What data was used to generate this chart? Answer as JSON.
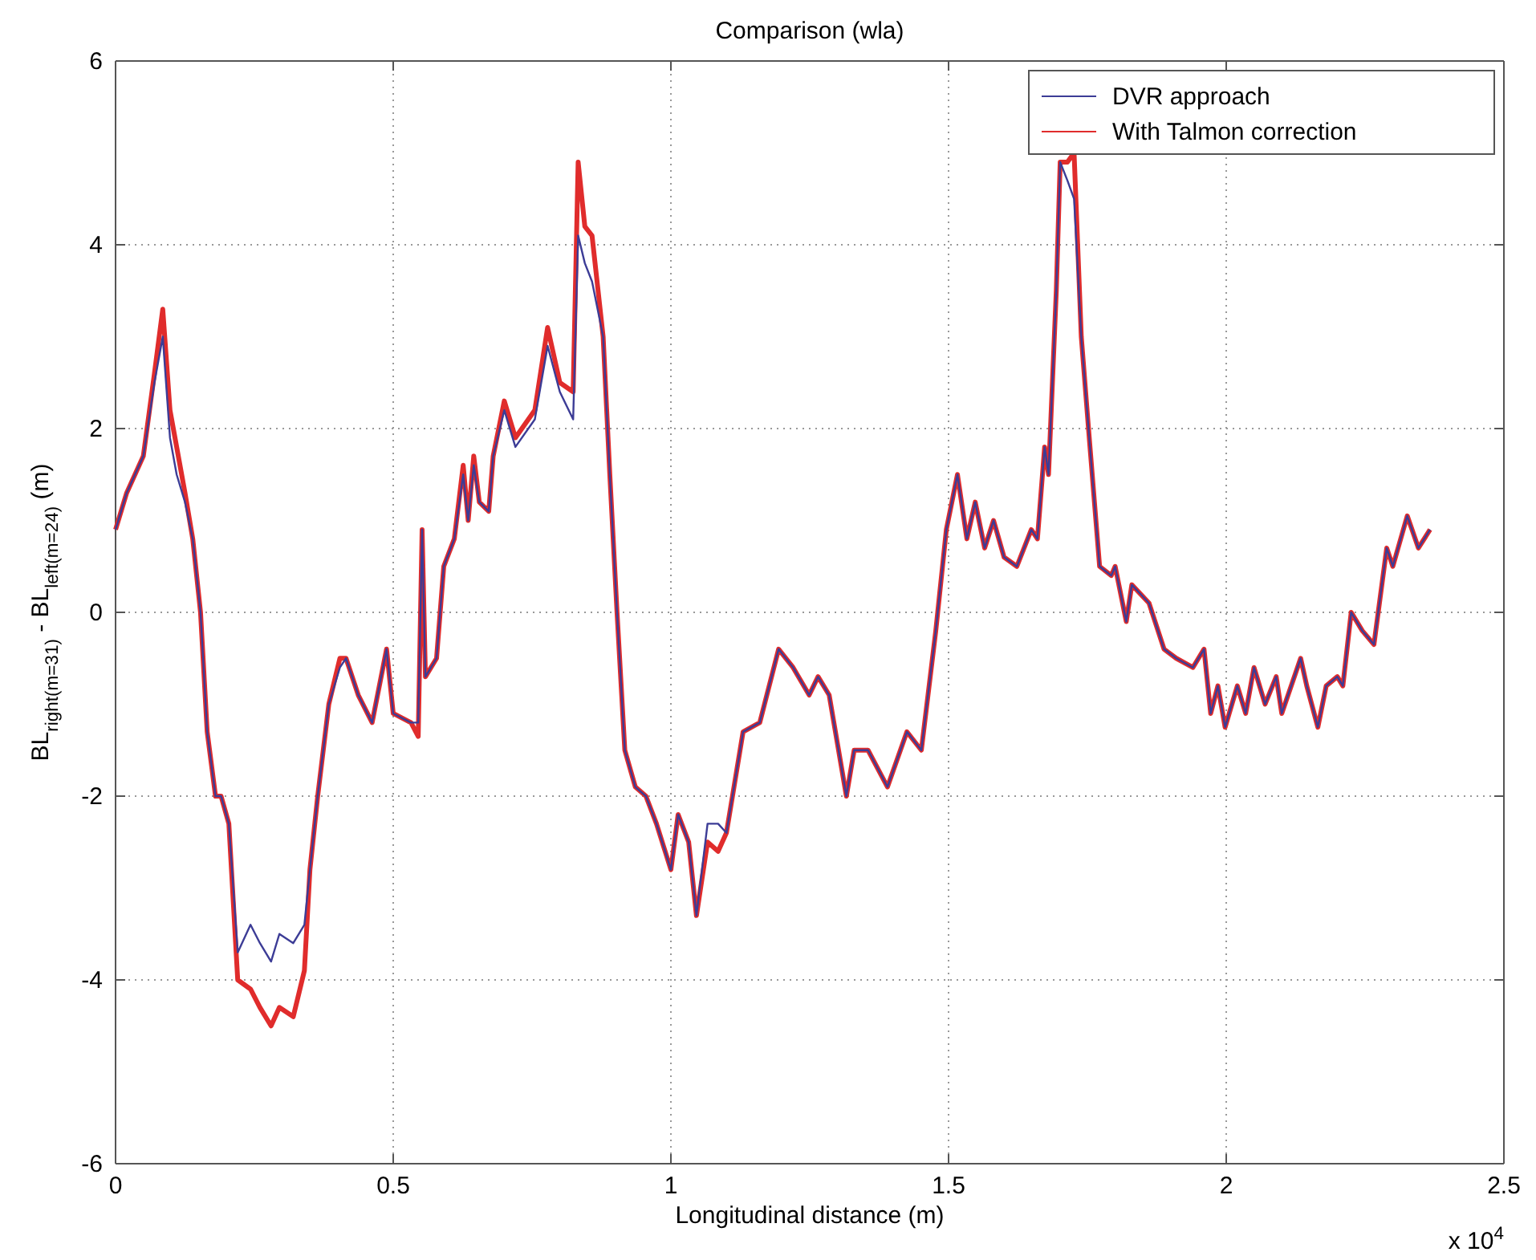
{
  "chart_data": {
    "type": "line",
    "title": "Comparison (wla)",
    "xlabel": "Longitudinal distance (m)",
    "ylabel": "BL$_{right(m=31)}$ - BL$_{left(m=24)}$ (m)",
    "annotations": [
      "x 10$^{4}$"
    ],
    "x": [
      0,
      0.02,
      0.05,
      0.07,
      0.085,
      0.098,
      0.11,
      0.125,
      0.139,
      0.153,
      0.165,
      0.18,
      0.19,
      0.204,
      0.22,
      0.243,
      0.26,
      0.28,
      0.295,
      0.32,
      0.34,
      0.35,
      0.364,
      0.384,
      0.404,
      0.415,
      0.437,
      0.462,
      0.488,
      0.5,
      0.532,
      0.545,
      0.552,
      0.558,
      0.578,
      0.591,
      0.61,
      0.626,
      0.635,
      0.645,
      0.655,
      0.672,
      0.68,
      0.7,
      0.72,
      0.755,
      0.778,
      0.8,
      0.824,
      0.833,
      0.845,
      0.858,
      0.878,
      0.89,
      0.903,
      0.917,
      0.936,
      0.955,
      0.974,
      1.0,
      1.013,
      1.032,
      1.046,
      1.066,
      1.085,
      1.1,
      1.13,
      1.16,
      1.194,
      1.22,
      1.249,
      1.265,
      1.285,
      1.316,
      1.33,
      1.355,
      1.39,
      1.425,
      1.451,
      1.477,
      1.496,
      1.516,
      1.533,
      1.548,
      1.565,
      1.581,
      1.6,
      1.623,
      1.649,
      1.66,
      1.673,
      1.68,
      1.694,
      1.701,
      1.714,
      1.726,
      1.739,
      1.752,
      1.772,
      1.793,
      1.8,
      1.82,
      1.83,
      1.861,
      1.888,
      1.91,
      1.94,
      1.96,
      1.972,
      1.985,
      1.998,
      2.02,
      2.035,
      2.05,
      2.07,
      2.09,
      2.1,
      2.134,
      2.145,
      2.165,
      2.18,
      2.2,
      2.21,
      2.225,
      2.245,
      2.266,
      2.289,
      2.3,
      2.326,
      2.346,
      2.367
    ],
    "series": [
      {
        "name": "DVR approach",
        "color": "#3c3c96",
        "values": [
          0.9,
          1.3,
          1.7,
          2.5,
          3.0,
          1.9,
          1.5,
          1.2,
          0.8,
          0,
          -1.3,
          -2.0,
          -2.0,
          -2.3,
          -3.7,
          -3.4,
          -3.6,
          -3.8,
          -3.5,
          -3.6,
          -3.4,
          -2.8,
          -2.0,
          -1.0,
          -0.6,
          -0.5,
          -0.9,
          -1.2,
          -0.4,
          -1.1,
          -1.2,
          -1.2,
          0.9,
          -0.7,
          -0.5,
          0.5,
          0.8,
          1.5,
          1.0,
          1.6,
          1.2,
          1.1,
          1.7,
          2.2,
          1.8,
          2.1,
          2.9,
          2.4,
          2.1,
          4.1,
          3.8,
          3.6,
          3.0,
          1.5,
          0,
          -1.5,
          -1.9,
          -2.0,
          -2.3,
          -2.8,
          -2.2,
          -2.5,
          -3.3,
          -2.3,
          -2.3,
          -2.4,
          -1.3,
          -1.2,
          -0.4,
          -0.6,
          -0.9,
          -0.7,
          -0.9,
          -2.0,
          -1.5,
          -1.5,
          -1.9,
          -1.3,
          -1.5,
          -0.2,
          0.9,
          1.5,
          0.8,
          1.2,
          0.7,
          1.0,
          0.6,
          0.5,
          0.9,
          0.8,
          1.8,
          1.5,
          3.5,
          4.9,
          4.7,
          4.5,
          3.0,
          2.0,
          0.5,
          0.4,
          0.5,
          -0.1,
          0.3,
          0.1,
          -0.4,
          -0.5,
          -0.6,
          -0.4,
          -1.1,
          -0.8,
          -1.25,
          -0.8,
          -1.1,
          -0.6,
          -1.0,
          -0.7,
          -1.1,
          -0.5,
          -0.8,
          -1.25,
          -0.8,
          -0.7,
          -0.8,
          0,
          -0.2,
          -0.35,
          0.7,
          0.5,
          1.05,
          0.7,
          0.9
        ]
      },
      {
        "name": "With Talmon correction",
        "color": "#e02c2c",
        "values": [
          0.9,
          1.3,
          1.7,
          2.6,
          3.3,
          2.2,
          1.8,
          1.3,
          0.8,
          0,
          -1.3,
          -2.0,
          -2.0,
          -2.3,
          -4.0,
          -4.1,
          -4.3,
          -4.5,
          -4.3,
          -4.4,
          -3.9,
          -2.8,
          -2.0,
          -1.0,
          -0.5,
          -0.5,
          -0.9,
          -1.2,
          -0.4,
          -1.1,
          -1.2,
          -1.35,
          0.9,
          -0.7,
          -0.5,
          0.5,
          0.8,
          1.6,
          1.0,
          1.7,
          1.2,
          1.1,
          1.7,
          2.3,
          1.9,
          2.2,
          3.1,
          2.5,
          2.4,
          4.9,
          4.2,
          4.1,
          3.0,
          1.5,
          0,
          -1.5,
          -1.9,
          -2.0,
          -2.3,
          -2.8,
          -2.2,
          -2.5,
          -3.3,
          -2.5,
          -2.6,
          -2.4,
          -1.3,
          -1.2,
          -0.4,
          -0.6,
          -0.9,
          -0.7,
          -0.9,
          -2.0,
          -1.5,
          -1.5,
          -1.9,
          -1.3,
          -1.5,
          -0.2,
          0.9,
          1.5,
          0.8,
          1.2,
          0.7,
          1.0,
          0.6,
          0.5,
          0.9,
          0.8,
          1.8,
          1.5,
          3.5,
          4.9,
          4.9,
          5.0,
          3.0,
          2.0,
          0.5,
          0.4,
          0.5,
          -0.1,
          0.3,
          0.1,
          -0.4,
          -0.5,
          -0.6,
          -0.4,
          -1.1,
          -0.8,
          -1.25,
          -0.8,
          -1.1,
          -0.6,
          -1.0,
          -0.7,
          -1.1,
          -0.5,
          -0.8,
          -1.25,
          -0.8,
          -0.7,
          -0.8,
          0,
          -0.2,
          -0.35,
          0.7,
          0.5,
          1.05,
          0.7,
          0.9
        ]
      }
    ],
    "xlim": [
      0,
      2.5
    ],
    "xticks": [
      0,
      0.5,
      1,
      1.5,
      2,
      2.5
    ],
    "ylim": [
      -6,
      6
    ],
    "yticks": [
      -6,
      -4,
      -2,
      0,
      2,
      4,
      6
    ],
    "grid": true,
    "legend": "top right",
    "line_style": "solid",
    "marker": "none"
  }
}
